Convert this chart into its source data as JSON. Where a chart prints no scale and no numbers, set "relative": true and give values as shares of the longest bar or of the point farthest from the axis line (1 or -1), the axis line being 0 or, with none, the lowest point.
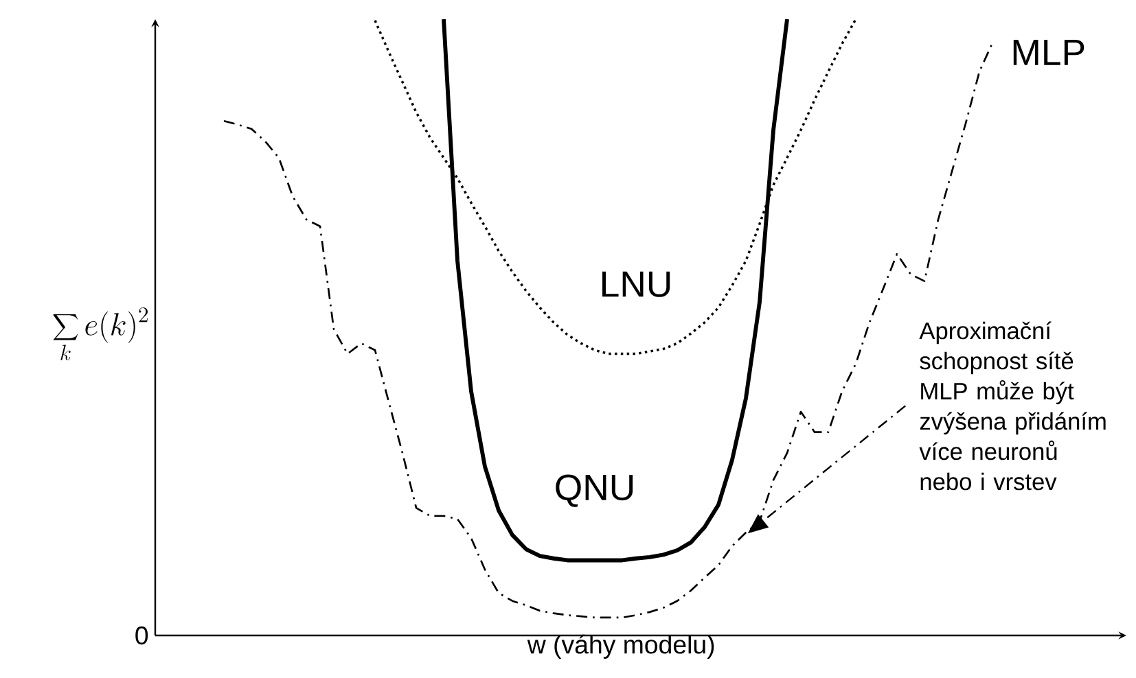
{
  "chart_data": {
    "type": "line",
    "relative": true,
    "xlabel": "w (váhy modelu)",
    "ylabel": "\\sum_k e(k)^2",
    "categories": [
      null,
      null,
      null,
      null,
      null,
      null,
      null,
      null,
      null,
      null,
      null,
      null,
      null,
      null,
      null,
      null,
      null,
      null,
      null,
      null,
      null,
      null,
      null,
      null,
      null,
      null,
      null,
      null,
      null,
      null,
      null,
      null,
      null,
      null,
      null,
      null,
      null,
      null,
      null,
      null,
      null,
      null,
      null,
      null,
      null,
      null,
      null,
      null,
      null,
      null,
      null,
      null,
      null,
      null,
      null,
      null,
      null
    ],
    "series": [
      {
        "name": "LNU",
        "color": "#000000",
        "line_style": "dotted",
        "values": [
          null,
          null,
          null,
          null,
          null,
          null,
          null,
          null,
          null,
          null,
          null,
          0.998,
          0.947,
          0.898,
          0.849,
          0.808,
          0.775,
          0.742,
          0.702,
          0.664,
          0.624,
          0.59,
          0.559,
          0.532,
          0.508,
          0.488,
          0.474,
          0.463,
          0.457,
          0.457,
          0.457,
          0.461,
          0.465,
          0.474,
          0.49,
          0.508,
          0.532,
          0.568,
          0.608,
          0.668,
          0.731,
          0.775,
          0.82,
          0.869,
          0.915,
          0.96,
          1.0,
          null,
          null,
          null,
          null,
          null,
          null,
          null,
          null,
          null,
          null
        ]
      },
      {
        "name": "QNU",
        "color": "#000000",
        "line_style": "solid",
        "values": [
          null,
          null,
          null,
          null,
          null,
          null,
          null,
          null,
          null,
          null,
          null,
          null,
          null,
          null,
          null,
          null,
          1.0,
          0.608,
          0.396,
          0.274,
          0.203,
          0.163,
          0.14,
          0.129,
          0.125,
          0.122,
          0.122,
          0.122,
          0.122,
          0.122,
          0.125,
          0.127,
          0.131,
          0.138,
          0.151,
          0.176,
          0.212,
          0.285,
          0.385,
          0.541,
          0.82,
          1.0,
          null,
          null,
          null,
          null,
          null,
          null,
          null,
          null,
          null,
          null,
          null,
          null,
          null,
          null,
          null
        ]
      },
      {
        "name": "MLP",
        "color": "#000000",
        "line_style": "dashdot",
        "values": [
          0.835,
          0.829,
          0.822,
          0.802,
          0.775,
          0.713,
          0.675,
          0.664,
          0.497,
          0.457,
          0.474,
          0.463,
          0.379,
          0.296,
          0.207,
          0.194,
          0.194,
          0.189,
          0.158,
          0.107,
          0.069,
          0.056,
          0.049,
          0.04,
          0.036,
          0.033,
          0.031,
          0.029,
          0.029,
          0.029,
          0.033,
          0.038,
          0.045,
          0.056,
          0.073,
          0.094,
          0.114,
          0.145,
          0.167,
          0.185,
          0.252,
          0.296,
          0.363,
          0.33,
          0.33,
          0.396,
          0.441,
          0.508,
          0.563,
          0.619,
          0.586,
          0.575,
          0.675,
          0.753,
          0.831,
          0.915,
          0.964
        ]
      }
    ],
    "annotations": [
      "0",
      "Aproximační schopnost sítě MLP může být zvýšena přidáním více neuronů nebo i vrstev"
    ]
  }
}
